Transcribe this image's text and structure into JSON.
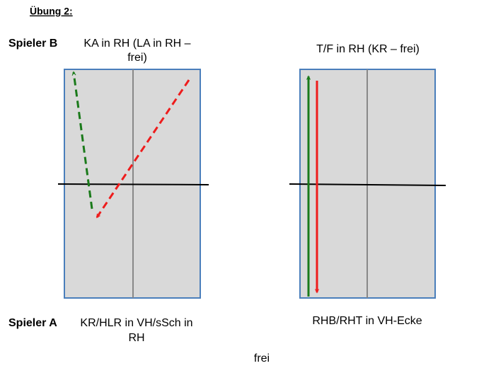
{
  "title": "Übung 2:",
  "player_b": {
    "label": "Spieler B",
    "left_text": [
      "KA in RH (LA in RH –",
      "frei)"
    ],
    "right_text": "T/F in RH (KR – frei)"
  },
  "player_a": {
    "label": "Spieler A",
    "left_text": [
      "KR/HLR in VH/sSch in",
      "RH"
    ],
    "right_text": "RHB/RHT in VH-Ecke"
  },
  "footer": "frei"
}
